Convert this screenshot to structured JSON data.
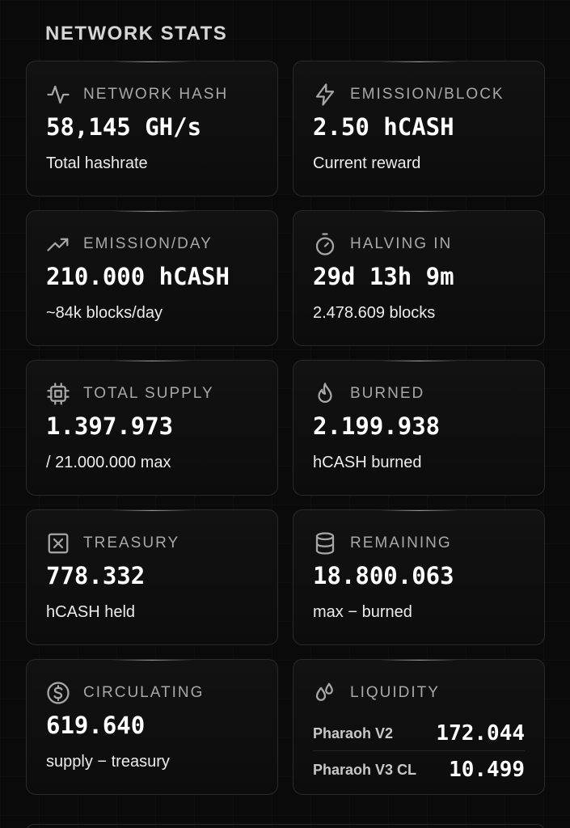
{
  "section": {
    "title": "NETWORK STATS"
  },
  "cards": [
    {
      "id": "network-hash",
      "icon": "activity-icon",
      "label": "NETWORK HASH",
      "value": "58,145 GH/s",
      "sub": "Total hashrate"
    },
    {
      "id": "emission-block",
      "icon": "lightning-bolt-icon",
      "label": "EMISSION/BLOCK",
      "value": "2.50 hCASH",
      "sub": "Current reward"
    },
    {
      "id": "emission-day",
      "icon": "trending-up-icon",
      "label": "EMISSION/DAY",
      "value": "210.000 hCASH",
      "sub": "~84k blocks/day"
    },
    {
      "id": "halving-in",
      "icon": "stopwatch-icon",
      "label": "HALVING IN",
      "value": "29d 13h 9m",
      "sub": "2.478.609 blocks"
    },
    {
      "id": "total-supply",
      "icon": "cpu-chip-icon",
      "label": "TOTAL SUPPLY",
      "value": "1.397.973",
      "sub": "/ 21.000.000 max"
    },
    {
      "id": "burned",
      "icon": "flame-icon",
      "label": "BURNED",
      "value": "2.199.938",
      "sub": "hCASH burned"
    },
    {
      "id": "treasury",
      "icon": "vault-box-icon",
      "label": "TREASURY",
      "value": "778.332",
      "sub": "hCASH held"
    },
    {
      "id": "remaining",
      "icon": "database-icon",
      "label": "REMAINING",
      "value": "18.800.063",
      "sub": "max − burned"
    },
    {
      "id": "circulating",
      "icon": "dollar-circle-icon",
      "label": "CIRCULATING",
      "value": "619.640",
      "sub": "supply − treasury"
    }
  ],
  "liquidity": {
    "icon": "droplets-icon",
    "label": "LIQUIDITY",
    "rows": [
      {
        "name": "Pharaoh V2",
        "value": "172.044"
      },
      {
        "name": "Pharaoh V3 CL",
        "value": "10.499"
      }
    ]
  }
}
